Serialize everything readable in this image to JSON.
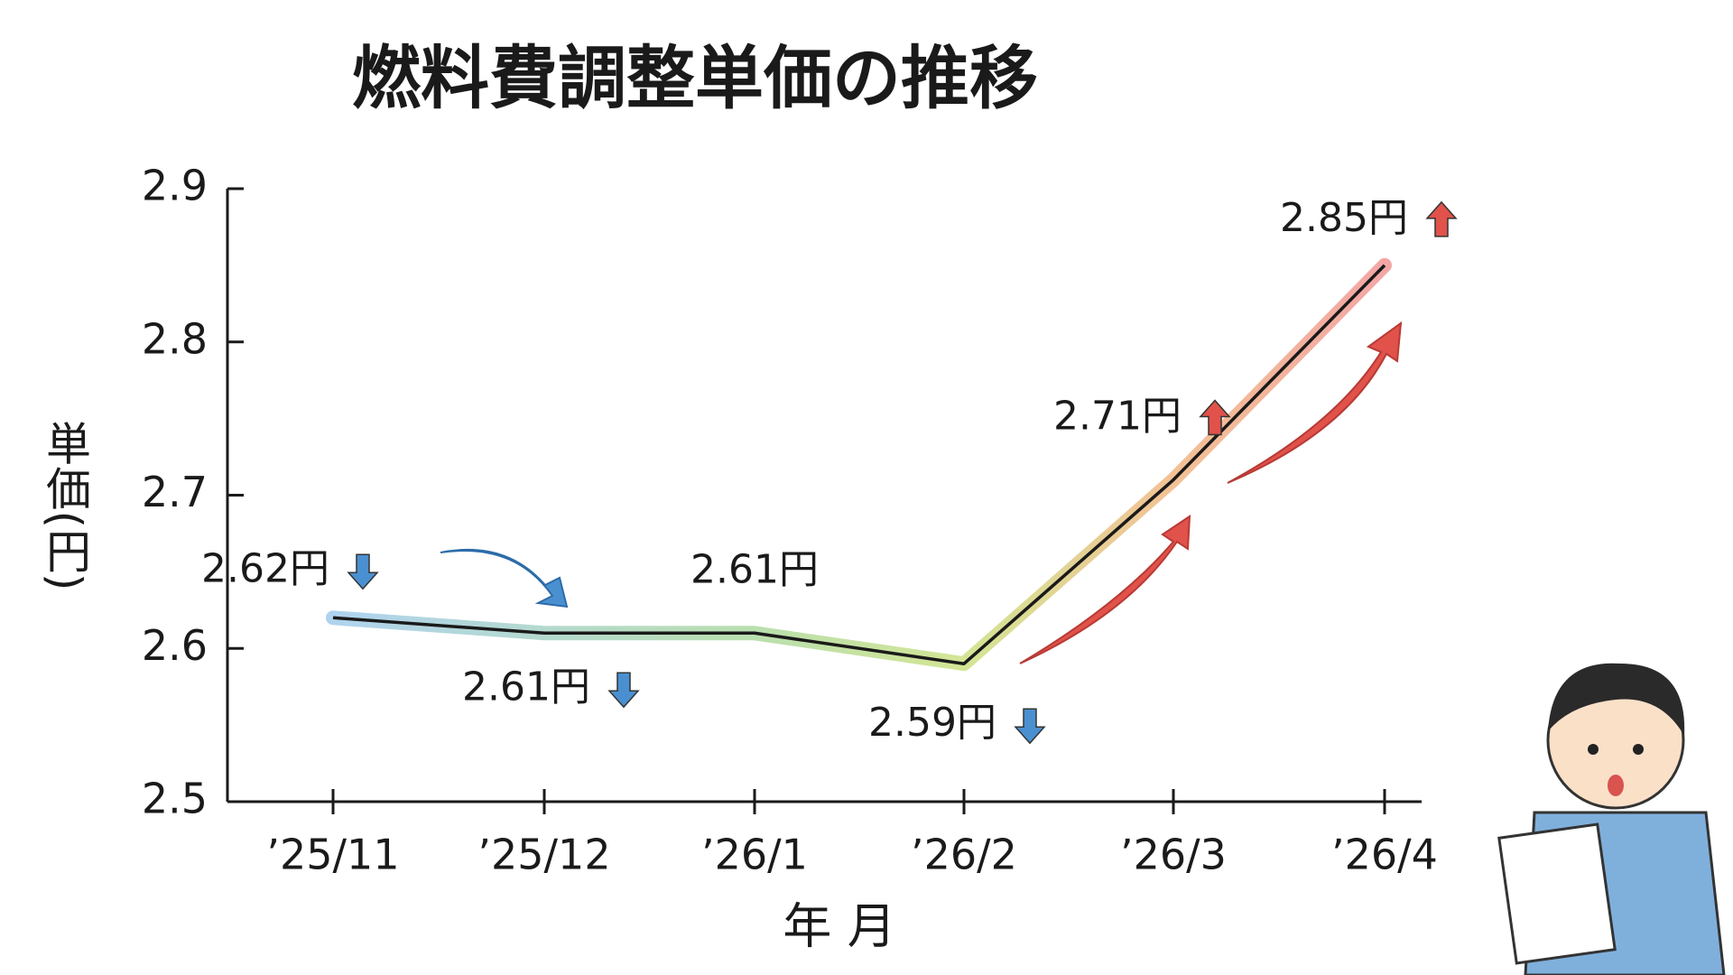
{
  "chart_data": {
    "type": "line",
    "title": "燃料費調整単価の推移",
    "x_label": "年 月",
    "y_label": "単価(円)",
    "categories": [
      "’25/11",
      "’25/12",
      "’26/1",
      "’26/2",
      "’26/3",
      "’26/4"
    ],
    "values": [
      2.62,
      2.61,
      2.61,
      2.59,
      2.71,
      2.85
    ],
    "value_labels": [
      "2.62円",
      "2.61円",
      "2.61円",
      "2.59円",
      "2.71円",
      "2.85円"
    ],
    "color": "#1a1a1a",
    "ylim": [
      2.5,
      2.9
    ],
    "yticks": [
      2.5,
      2.6,
      2.7,
      2.8,
      2.9
    ],
    "grid": false
  }
}
